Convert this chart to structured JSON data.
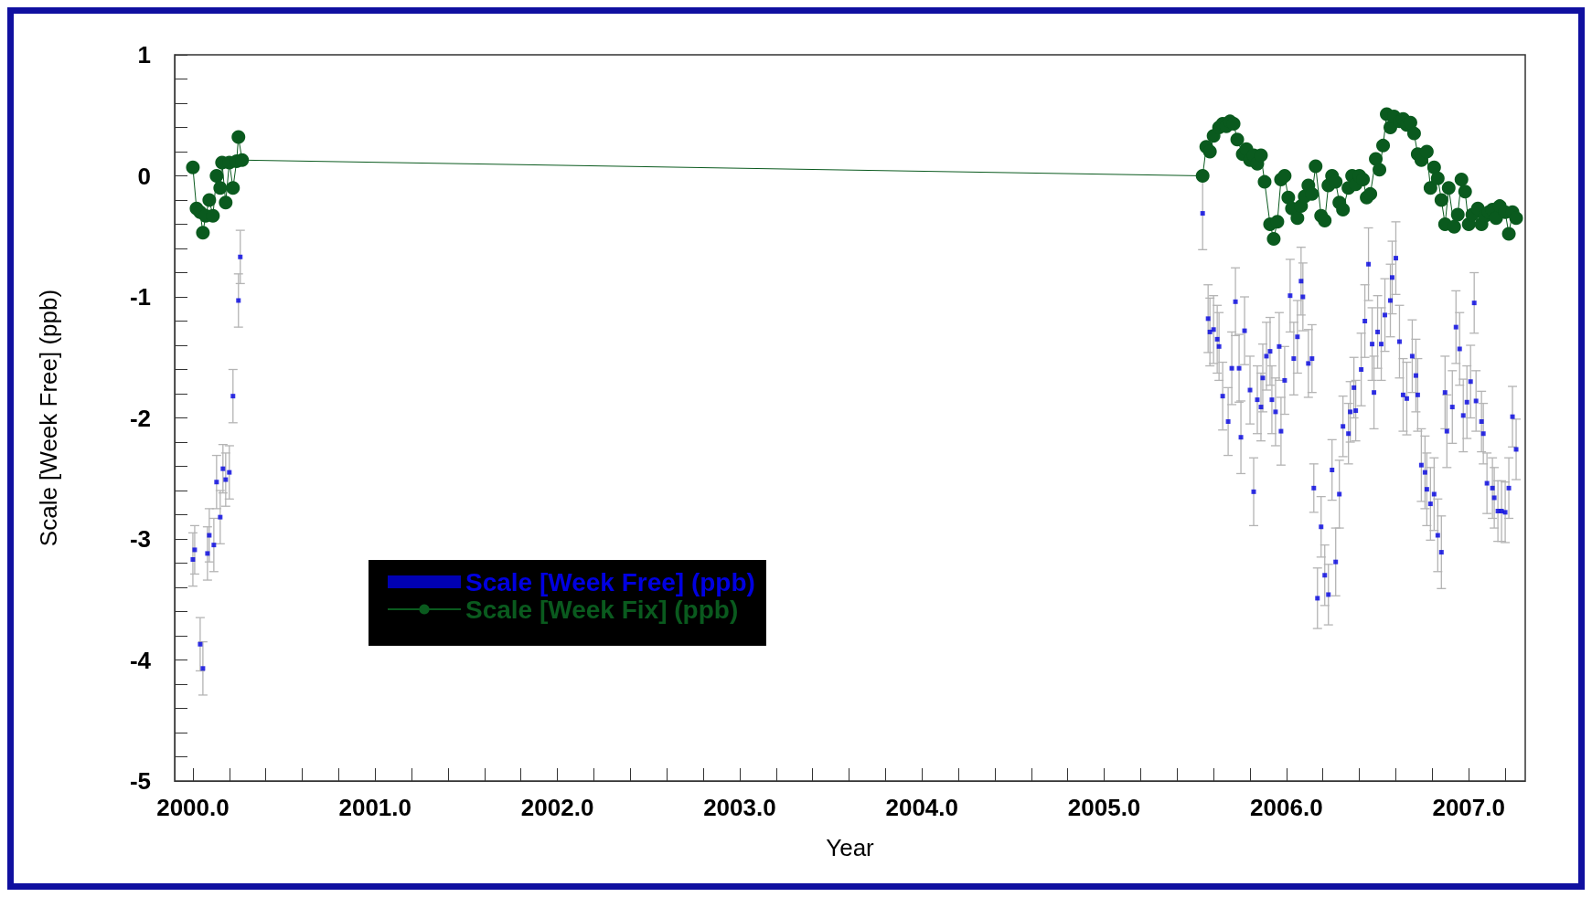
{
  "chart_data": {
    "type": "scatter",
    "xlabel": "Year",
    "ylabel": "Scale [Week Free] (ppb)",
    "xlim": [
      1999.9,
      2007.31
    ],
    "ylim": [
      -5,
      1
    ],
    "xticks": [
      {
        "value": 2000,
        "label": "2000.0"
      },
      {
        "value": 2000.2,
        "label": null
      },
      {
        "value": 2000.4,
        "label": null
      },
      {
        "value": 2000.6,
        "label": null
      },
      {
        "value": 2000.8,
        "label": null
      },
      {
        "value": 2001,
        "label": "2001.0"
      },
      {
        "value": 2001.2,
        "label": null
      },
      {
        "value": 2001.4,
        "label": null
      },
      {
        "value": 2001.6,
        "label": null
      },
      {
        "value": 2001.8,
        "label": null
      },
      {
        "value": 2002,
        "label": "2002.0"
      },
      {
        "value": 2002.2,
        "label": null
      },
      {
        "value": 2002.4,
        "label": null
      },
      {
        "value": 2002.6,
        "label": null
      },
      {
        "value": 2002.8,
        "label": null
      },
      {
        "value": 2003,
        "label": "2003.0"
      },
      {
        "value": 2003.2,
        "label": null
      },
      {
        "value": 2003.4,
        "label": null
      },
      {
        "value": 2003.6,
        "label": null
      },
      {
        "value": 2003.8,
        "label": null
      },
      {
        "value": 2004,
        "label": "2004.0"
      },
      {
        "value": 2004.2,
        "label": null
      },
      {
        "value": 2004.4,
        "label": null
      },
      {
        "value": 2004.6,
        "label": null
      },
      {
        "value": 2004.8,
        "label": null
      },
      {
        "value": 2005,
        "label": "2005.0"
      },
      {
        "value": 2005.2,
        "label": null
      },
      {
        "value": 2005.4,
        "label": null
      },
      {
        "value": 2005.6,
        "label": null
      },
      {
        "value": 2005.8,
        "label": null
      },
      {
        "value": 2006,
        "label": "2006.0"
      },
      {
        "value": 2006.2,
        "label": null
      },
      {
        "value": 2006.4,
        "label": null
      },
      {
        "value": 2006.6,
        "label": null
      },
      {
        "value": 2006.8,
        "label": null
      },
      {
        "value": 2007,
        "label": "2007.0"
      },
      {
        "value": 2007.2,
        "label": null
      }
    ],
    "yticks": [
      -5,
      {
        "value": -4.8,
        "label": null
      },
      {
        "value": -4.6,
        "label": null
      },
      {
        "value": -4.4,
        "label": null
      },
      {
        "value": -4.2,
        "label": null
      },
      -4,
      {
        "value": -3.8,
        "label": null
      },
      {
        "value": -3.6,
        "label": null
      },
      {
        "value": -3.4,
        "label": null
      },
      {
        "value": -3.2,
        "label": null
      },
      -3,
      {
        "value": -2.8,
        "label": null
      },
      {
        "value": -2.6,
        "label": null
      },
      {
        "value": -2.4,
        "label": null
      },
      {
        "value": -2.2,
        "label": null
      },
      -2,
      {
        "value": -1.8,
        "label": null
      },
      {
        "value": -1.6,
        "label": null
      },
      {
        "value": -1.4,
        "label": null
      },
      {
        "value": -1.2,
        "label": null
      },
      -1,
      {
        "value": -0.8,
        "label": null
      },
      {
        "value": -0.6,
        "label": null
      },
      {
        "value": -0.4,
        "label": null
      },
      {
        "value": -0.2,
        "label": null
      },
      0,
      {
        "value": 0.2,
        "label": null
      },
      {
        "value": 0.4,
        "label": null
      },
      {
        "value": 0.6,
        "label": null
      },
      {
        "value": 0.8,
        "label": null
      },
      1
    ],
    "grid": false,
    "legend": "bottom left",
    "series": [
      {
        "name": "Scale [Week Free] (ppb)",
        "marker": "square",
        "color": "#0000e0",
        "x": [
          2000.0,
          2000.01,
          2000.04,
          2000.055,
          2000.08,
          2000.09,
          2000.115,
          2000.13,
          2000.15,
          2000.165,
          2000.18,
          2000.2,
          2000.22,
          2000.25,
          2000.26,
          2005.54,
          2005.57,
          2005.58,
          2005.6,
          2005.62,
          2005.63,
          2005.65,
          2005.68,
          2005.7,
          2005.72,
          2005.74,
          2005.75,
          2005.77,
          2005.8,
          2005.82,
          2005.84,
          2005.86,
          2005.87,
          2005.89,
          2005.91,
          2005.92,
          2005.94,
          2005.96,
          2005.97,
          2005.99,
          2006.02,
          2006.04,
          2006.06,
          2006.08,
          2006.09,
          2006.12,
          2006.14,
          2006.15,
          2006.17,
          2006.19,
          2006.21,
          2006.23,
          2006.25,
          2006.27,
          2006.29,
          2006.31,
          2006.34,
          2006.35,
          2006.37,
          2006.38,
          2006.41,
          2006.43,
          2006.45,
          2006.47,
          2006.48,
          2006.5,
          2006.52,
          2006.54,
          2006.57,
          2006.58,
          2006.6,
          2006.62,
          2006.64,
          2006.66,
          2006.69,
          2006.71,
          2006.72,
          2006.74,
          2006.76,
          2006.77,
          2006.79,
          2006.81,
          2006.83,
          2006.85,
          2006.87,
          2006.88,
          2006.91,
          2006.93,
          2006.95,
          2006.97,
          2006.99,
          2007.01,
          2007.03,
          2007.04,
          2007.07,
          2007.08,
          2007.1,
          2007.13,
          2007.14,
          2007.16,
          2007.18,
          2007.2,
          2007.22,
          2007.24,
          2007.26
        ],
        "values": [
          -3.17,
          -3.09,
          -3.87,
          -4.07,
          -3.12,
          -2.97,
          -3.05,
          -2.53,
          -2.82,
          -2.42,
          -2.51,
          -2.45,
          -1.82,
          -1.03,
          -0.67,
          -0.31,
          -1.18,
          -1.29,
          -1.27,
          -1.35,
          -1.41,
          -1.82,
          -2.03,
          -1.59,
          -1.04,
          -1.59,
          -2.16,
          -1.28,
          -1.77,
          -2.61,
          -1.85,
          -1.91,
          -1.67,
          -1.49,
          -1.45,
          -1.85,
          -1.95,
          -1.41,
          -2.11,
          -1.69,
          -0.99,
          -1.51,
          -1.33,
          -0.87,
          -1.0,
          -1.55,
          -1.51,
          -2.58,
          -3.49,
          -2.9,
          -3.3,
          -3.46,
          -2.43,
          -3.19,
          -2.63,
          -2.07,
          -2.13,
          -1.95,
          -1.75,
          -1.94,
          -1.6,
          -1.2,
          -0.73,
          -1.39,
          -1.79,
          -1.29,
          -1.39,
          -1.15,
          -1.03,
          -0.84,
          -0.68,
          -1.37,
          -1.81,
          -1.84,
          -1.49,
          -1.65,
          -1.81,
          -2.39,
          -2.45,
          -2.59,
          -2.71,
          -2.63,
          -2.97,
          -3.11,
          -1.79,
          -2.11,
          -1.91,
          -1.25,
          -1.43,
          -1.98,
          -1.87,
          -1.7,
          -1.05,
          -1.86,
          -2.03,
          -2.13,
          -2.54,
          -2.58,
          -2.66,
          -2.77,
          -2.77,
          -2.78,
          -2.58,
          -1.99,
          -2.26
        ],
        "errors": [
          0.22,
          0.2,
          0.22,
          0.22,
          0.22,
          0.22,
          0.22,
          0.22,
          0.22,
          0.2,
          0.22,
          0.22,
          0.22,
          0.22,
          0.22,
          0.3,
          0.28,
          0.28,
          0.28,
          0.28,
          0.28,
          0.28,
          0.28,
          0.3,
          0.28,
          0.28,
          0.3,
          0.28,
          0.28,
          0.28,
          0.28,
          0.28,
          0.28,
          0.28,
          0.28,
          0.28,
          0.28,
          0.28,
          0.28,
          0.28,
          0.3,
          0.3,
          0.3,
          0.28,
          0.28,
          0.28,
          0.28,
          0.2,
          0.25,
          0.25,
          0.25,
          0.25,
          0.25,
          0.28,
          0.28,
          0.25,
          0.25,
          0.25,
          0.25,
          0.25,
          0.3,
          0.3,
          0.3,
          0.3,
          0.3,
          0.3,
          0.3,
          0.3,
          0.3,
          0.3,
          0.3,
          0.3,
          0.3,
          0.3,
          0.3,
          0.3,
          0.3,
          0.3,
          0.3,
          0.3,
          0.3,
          0.3,
          0.3,
          0.3,
          0.3,
          0.3,
          0.3,
          0.3,
          0.3,
          0.3,
          0.3,
          0.3,
          0.25,
          0.25,
          0.25,
          0.25,
          0.25,
          0.25,
          0.25,
          0.25,
          0.25,
          0.25,
          0.25,
          0.25,
          0.25
        ]
      },
      {
        "name": "Scale [Week Fix] (ppb)",
        "type": "line",
        "marker": "circle",
        "color": "#0a5a1e",
        "x": [
          2000.0,
          2000.02,
          2000.04,
          2000.055,
          2000.07,
          2000.09,
          2000.11,
          2000.13,
          2000.15,
          2000.16,
          2000.18,
          2000.2,
          2000.22,
          2000.24,
          2000.25,
          2000.27,
          2005.54,
          2005.56,
          2005.58,
          2005.6,
          2005.63,
          2005.65,
          2005.67,
          2005.69,
          2005.71,
          2005.73,
          2005.76,
          2005.78,
          2005.8,
          2005.82,
          2005.84,
          2005.86,
          2005.88,
          2005.91,
          2005.93,
          2005.95,
          2005.97,
          2005.99,
          2006.01,
          2006.03,
          2006.06,
          2006.08,
          2006.1,
          2006.12,
          2006.14,
          2006.16,
          2006.19,
          2006.21,
          2006.23,
          2006.25,
          2006.27,
          2006.29,
          2006.31,
          2006.34,
          2006.36,
          2006.38,
          2006.4,
          2006.42,
          2006.44,
          2006.46,
          2006.49,
          2006.51,
          2006.53,
          2006.55,
          2006.57,
          2006.59,
          2006.62,
          2006.64,
          2006.66,
          2006.68,
          2006.7,
          2006.72,
          2006.74,
          2006.77,
          2006.79,
          2006.81,
          2006.83,
          2006.85,
          2006.87,
          2006.89,
          2006.92,
          2006.94,
          2006.96,
          2006.98,
          2007.0,
          2007.02,
          2007.05,
          2007.07,
          2007.09,
          2007.11,
          2007.13,
          2007.15,
          2007.17,
          2007.2,
          2007.22,
          2007.24,
          2007.26
        ],
        "values": [
          0.07,
          -0.27,
          -0.3,
          -0.47,
          -0.33,
          -0.2,
          -0.33,
          0.0,
          -0.1,
          0.11,
          -0.22,
          0.11,
          -0.1,
          0.12,
          0.32,
          0.13,
          0.0,
          0.24,
          0.2,
          0.33,
          0.4,
          0.43,
          0.41,
          0.45,
          0.43,
          0.3,
          0.18,
          0.22,
          0.13,
          0.17,
          0.1,
          0.17,
          -0.05,
          -0.4,
          -0.52,
          -0.38,
          -0.03,
          0.0,
          -0.18,
          -0.27,
          -0.35,
          -0.25,
          -0.17,
          -0.08,
          -0.15,
          0.08,
          -0.33,
          -0.37,
          -0.08,
          0.0,
          -0.05,
          -0.22,
          -0.28,
          -0.1,
          0.0,
          -0.07,
          0.0,
          -0.03,
          -0.18,
          -0.15,
          0.14,
          0.05,
          0.25,
          0.51,
          0.4,
          0.49,
          0.45,
          0.47,
          0.42,
          0.44,
          0.35,
          0.18,
          0.13,
          0.2,
          -0.1,
          0.07,
          -0.02,
          -0.2,
          -0.4,
          -0.1,
          -0.42,
          -0.32,
          -0.03,
          -0.13,
          -0.4,
          -0.32,
          -0.27,
          -0.4,
          -0.33,
          -0.3,
          -0.28,
          -0.35,
          -0.25,
          -0.3,
          -0.48,
          -0.3,
          -0.35
        ]
      }
    ]
  }
}
